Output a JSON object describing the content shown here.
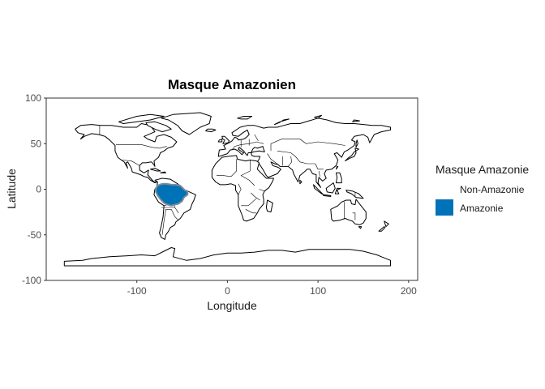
{
  "chart_data": {
    "type": "map",
    "title": "Masque Amazonien",
    "xlabel": "Longitude",
    "ylabel": "Latitude",
    "xlim": [
      -200,
      210
    ],
    "ylim": [
      -100,
      100
    ],
    "x_ticks": [
      -100,
      0,
      100,
      200
    ],
    "y_ticks": [
      100,
      50,
      0,
      -50,
      -100
    ],
    "x_tick_labels": [
      "-100",
      "0",
      "100",
      "200"
    ],
    "y_tick_labels": [
      "100",
      "50",
      "0",
      "-50",
      "-100"
    ],
    "grid": false,
    "legend": {
      "title": "Masque Amazonie",
      "position": "right",
      "entries": [
        {
          "label": "Non-Amazonie",
          "color": "#ffffff"
        },
        {
          "label": "Amazonie",
          "color": "#0072b8"
        }
      ]
    },
    "highlight_region": {
      "name": "Amazonie",
      "color": "#0072b8",
      "outline_color": "#7f8c99",
      "polygon_lonlat": [
        [
          -79,
          1
        ],
        [
          -77,
          4
        ],
        [
          -72,
          6
        ],
        [
          -67,
          6
        ],
        [
          -62,
          5
        ],
        [
          -57,
          5
        ],
        [
          -52,
          4
        ],
        [
          -49,
          1
        ],
        [
          -47,
          -1
        ],
        [
          -44,
          -2
        ],
        [
          -44,
          -6
        ],
        [
          -48,
          -9
        ],
        [
          -50,
          -13
        ],
        [
          -54,
          -16
        ],
        [
          -58,
          -17
        ],
        [
          -62,
          -18
        ],
        [
          -66,
          -17
        ],
        [
          -70,
          -15
        ],
        [
          -74,
          -11
        ],
        [
          -77,
          -7
        ],
        [
          -79,
          -3
        ]
      ]
    }
  }
}
